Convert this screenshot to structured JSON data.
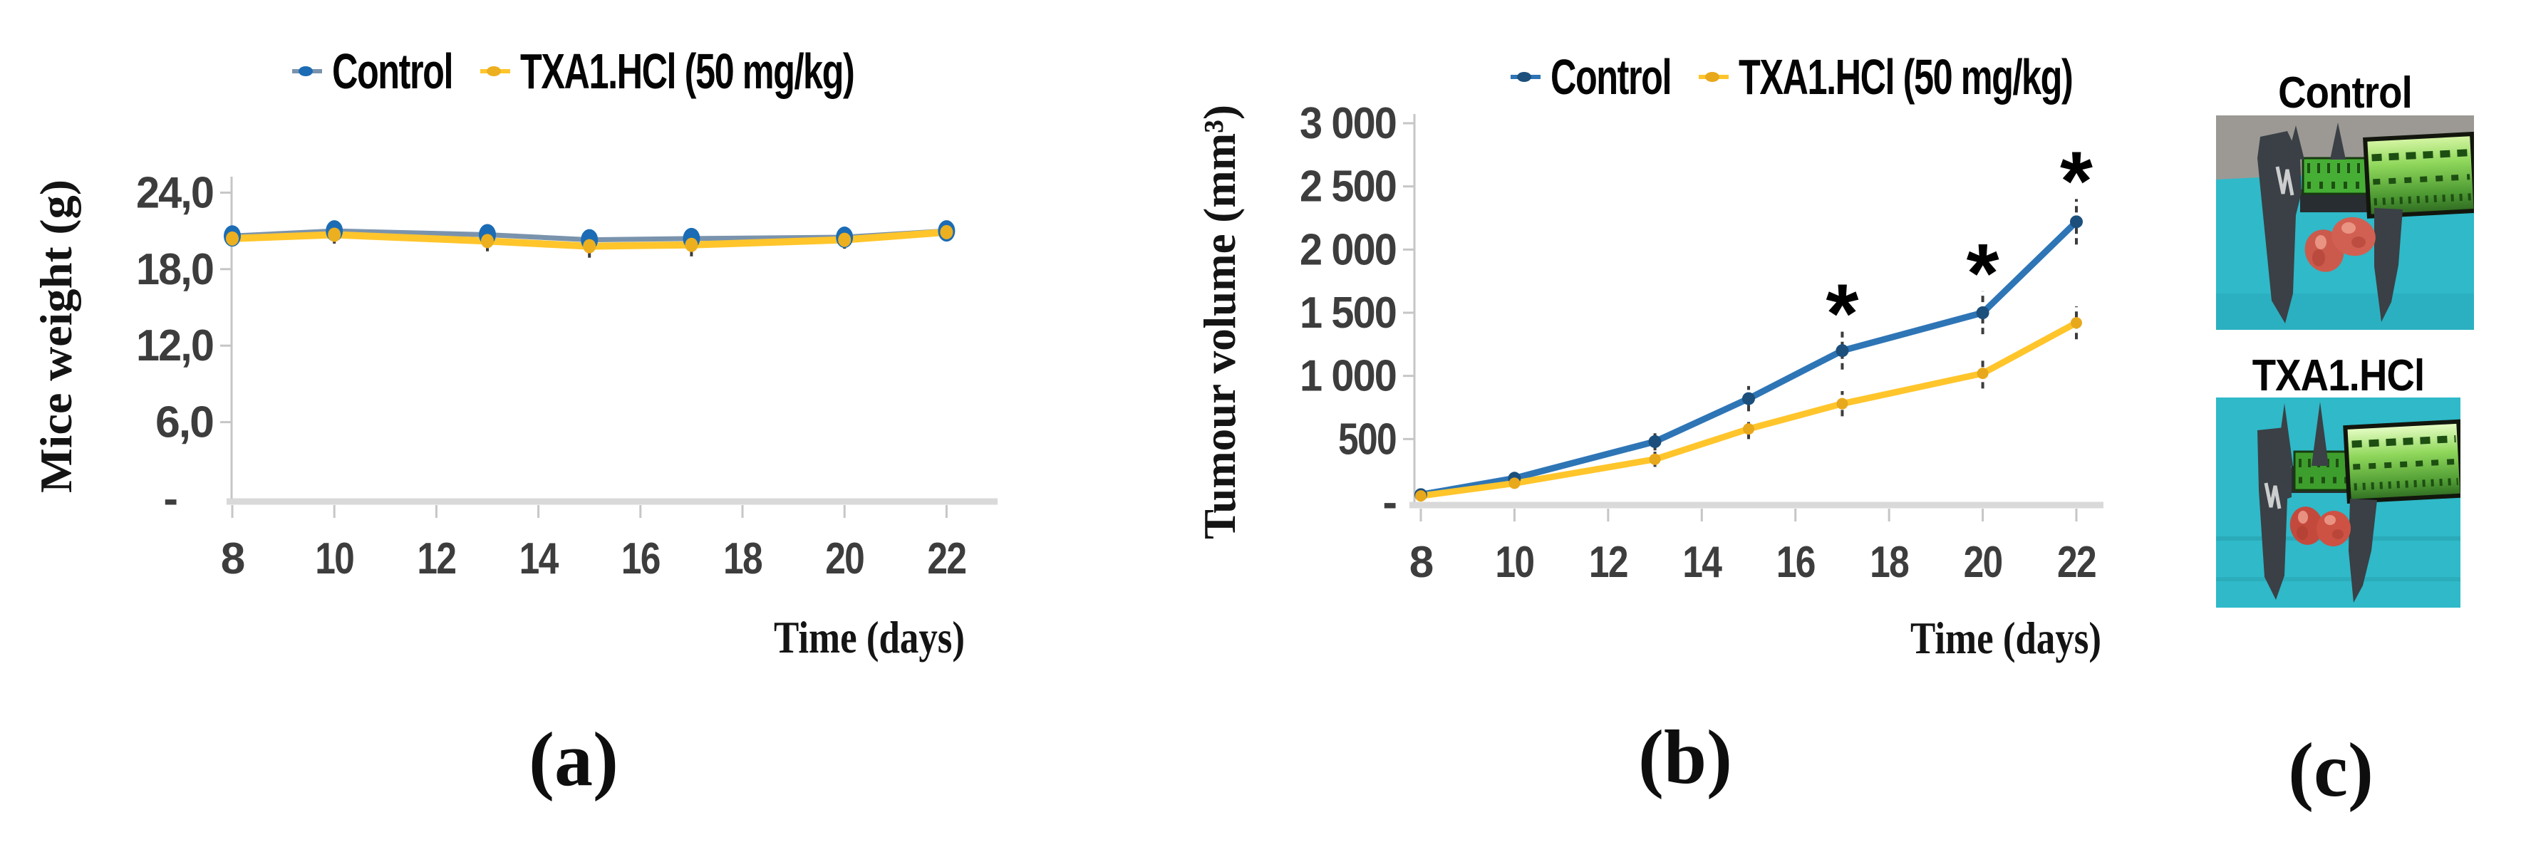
{
  "chart_data": [
    {
      "id": "a",
      "type": "line",
      "panel_label": "(a)",
      "xlabel": "Time (days)",
      "ylabel": "Mice weight (g)",
      "x": [
        8,
        10,
        13,
        15,
        17,
        20,
        22
      ],
      "xticks": [
        8,
        10,
        12,
        14,
        16,
        18,
        20,
        22
      ],
      "ylim": [
        0,
        24
      ],
      "ytick_values": [
        0,
        6,
        12,
        18,
        24
      ],
      "ytick_labels": [
        "-",
        "6,0",
        "12,0",
        "18,0",
        "24,0"
      ],
      "grid": false,
      "legend_position": "top",
      "series": [
        {
          "name": "Control",
          "color": "#7a93ad",
          "marker_color": "#1b6cb4",
          "values": [
            20.6,
            21.0,
            20.7,
            20.3,
            20.4,
            20.5,
            21.0
          ],
          "errors": [
            0.5,
            0.7,
            0.6,
            0.7,
            0.7,
            0.6,
            0.5
          ]
        },
        {
          "name": "TXA1.HCl (50 mg/kg)",
          "color": "#ffc52b",
          "marker_color": "#ecaf1f",
          "values": [
            20.4,
            20.7,
            20.2,
            19.8,
            19.9,
            20.3,
            20.9
          ],
          "errors": [
            0.5,
            0.7,
            0.8,
            0.9,
            0.9,
            0.7,
            0.5
          ]
        }
      ]
    },
    {
      "id": "b",
      "type": "line",
      "panel_label": "(b)",
      "xlabel": "Time (days)",
      "ylabel": "Tumour volume (mm³)",
      "x": [
        8,
        10,
        13,
        15,
        17,
        20,
        22
      ],
      "xticks": [
        8,
        10,
        12,
        14,
        16,
        18,
        20,
        22
      ],
      "ylim": [
        0,
        3000
      ],
      "ytick_values": [
        0,
        500,
        1000,
        1500,
        2000,
        2500,
        3000
      ],
      "ytick_labels": [
        "-",
        "500",
        "1 000",
        "1 500",
        "2 000",
        "2 500",
        "3 000"
      ],
      "grid": false,
      "legend_position": "top",
      "significance": {
        "symbol": "*",
        "x": [
          17,
          20,
          22
        ]
      },
      "series": [
        {
          "name": "Control",
          "color": "#2e75b6",
          "marker_color": "#1c4f7c",
          "values": [
            60,
            190,
            480,
            820,
            1200,
            1500,
            2220
          ],
          "errors": [
            20,
            40,
            70,
            100,
            150,
            170,
            180
          ]
        },
        {
          "name": "TXA1.HCl (50 mg/kg)",
          "color": "#ffc52b",
          "marker_color": "#e8a81c",
          "values": [
            50,
            150,
            340,
            580,
            780,
            1020,
            1420
          ],
          "errors": [
            15,
            35,
            60,
            80,
            100,
            120,
            130
          ]
        }
      ]
    }
  ],
  "panel_c": {
    "label": "(c)",
    "photos": [
      {
        "title": "Control"
      },
      {
        "title": "TXA1.HCl"
      }
    ],
    "photo_colors": {
      "photo-cyan": "#2fb9c9",
      "photo-cyan-dark": "#28a9ba",
      "photo-gray": "#9c9995",
      "caliper": "#3a4045",
      "caliper-dark": "#272d31",
      "pcb-green": "#46ae35",
      "pcb-green2": "#3e9e2d",
      "ruler-stripe": "#1d4f12",
      "tumor": "#cb5a4c",
      "tumor2": "#c4493d",
      "tumor-dark": "#a83a2e",
      "tumor-light": "#ef9e8d"
    }
  }
}
